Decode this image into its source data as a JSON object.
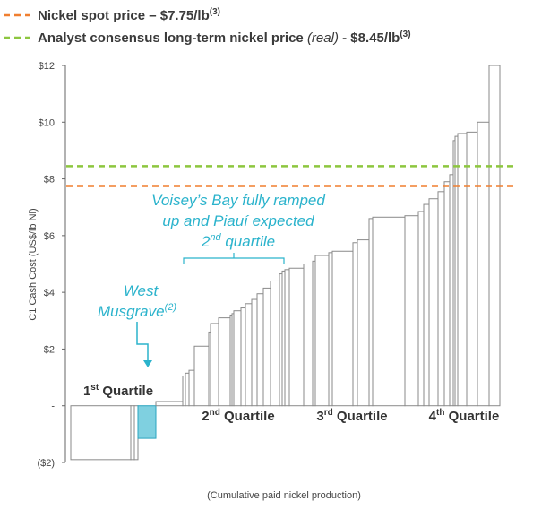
{
  "chart_data": {
    "type": "bar",
    "subtype": "cost-curve",
    "xlabel": "(Cumulative paid nickel production)",
    "ylabel": "C1 Cash Cost (US$/lb Ni)",
    "ylim": [
      -2,
      12
    ],
    "yticks": [
      {
        "value": 12,
        "label": "$12"
      },
      {
        "value": 10,
        "label": "$10"
      },
      {
        "value": 8,
        "label": "$8"
      },
      {
        "value": 6,
        "label": "$6"
      },
      {
        "value": 4,
        "label": "$4"
      },
      {
        "value": 2,
        "label": "$2"
      },
      {
        "value": 0,
        "label": "-"
      },
      {
        "value": -2,
        "label": "($2)"
      }
    ],
    "grid": false,
    "legend_position": "top",
    "legend": [
      {
        "text_main": "Nickel spot price – $7.75/lb",
        "text_italic": "",
        "text_tail": "",
        "sup": "(3)",
        "color": "#f07f2f"
      },
      {
        "text_main": "Analyst consensus long-term nickel price ",
        "text_italic": "(real)",
        "text_tail": " - $8.45/lb",
        "sup": "(3)",
        "color": "#8dc63f"
      }
    ],
    "reference_lines": [
      {
        "value": 7.75,
        "color": "#f07f2f",
        "style": "dashed"
      },
      {
        "value": 8.45,
        "color": "#8dc63f",
        "style": "dashed"
      }
    ],
    "bars": [
      {
        "width": 67,
        "value": -1.9,
        "highlight": false
      },
      {
        "width": 4,
        "value": -1.9,
        "highlight": false
      },
      {
        "width": 4,
        "value": -1.9,
        "highlight": false
      },
      {
        "width": 20,
        "value": -1.15,
        "highlight": true
      },
      {
        "width": 30,
        "value": 0.15,
        "highlight": false
      },
      {
        "width": 3,
        "value": 1.05,
        "highlight": false
      },
      {
        "width": 4,
        "value": 1.15,
        "highlight": false
      },
      {
        "width": 6,
        "value": 1.25,
        "highlight": false
      },
      {
        "width": 16,
        "value": 2.1,
        "highlight": false
      },
      {
        "width": 2,
        "value": 2.6,
        "highlight": false
      },
      {
        "width": 9,
        "value": 2.9,
        "highlight": false
      },
      {
        "width": 13,
        "value": 3.1,
        "highlight": false
      },
      {
        "width": 2,
        "value": 3.2,
        "highlight": false
      },
      {
        "width": 2,
        "value": 3.25,
        "highlight": false
      },
      {
        "width": 8,
        "value": 3.35,
        "highlight": false
      },
      {
        "width": 5,
        "value": 3.45,
        "highlight": false
      },
      {
        "width": 7,
        "value": 3.6,
        "highlight": false
      },
      {
        "width": 6,
        "value": 3.75,
        "highlight": false
      },
      {
        "width": 7,
        "value": 3.95,
        "highlight": false
      },
      {
        "width": 8,
        "value": 4.15,
        "highlight": false
      },
      {
        "width": 10,
        "value": 4.4,
        "highlight": false
      },
      {
        "width": 3,
        "value": 4.65,
        "highlight": false
      },
      {
        "width": 3,
        "value": 4.75,
        "highlight": false
      },
      {
        "width": 5,
        "value": 4.8,
        "highlight": false
      },
      {
        "width": 16,
        "value": 4.85,
        "highlight": false
      },
      {
        "width": 10,
        "value": 5.0,
        "highlight": false
      },
      {
        "width": 3,
        "value": 5.1,
        "highlight": false
      },
      {
        "width": 15,
        "value": 5.3,
        "highlight": false
      },
      {
        "width": 4,
        "value": 5.4,
        "highlight": false
      },
      {
        "width": 23,
        "value": 5.45,
        "highlight": false
      },
      {
        "width": 5,
        "value": 5.75,
        "highlight": false
      },
      {
        "width": 13,
        "value": 5.85,
        "highlight": false
      },
      {
        "width": 4,
        "value": 6.6,
        "highlight": false
      },
      {
        "width": 36,
        "value": 6.65,
        "highlight": false
      },
      {
        "width": 15,
        "value": 6.7,
        "highlight": false
      },
      {
        "width": 6,
        "value": 6.85,
        "highlight": false
      },
      {
        "width": 6,
        "value": 7.1,
        "highlight": false
      },
      {
        "width": 10,
        "value": 7.3,
        "highlight": false
      },
      {
        "width": 7,
        "value": 7.55,
        "highlight": false
      },
      {
        "width": 6,
        "value": 7.9,
        "highlight": false
      },
      {
        "width": 4,
        "value": 8.15,
        "highlight": false
      },
      {
        "width": 2,
        "value": 9.35,
        "highlight": false
      },
      {
        "width": 3,
        "value": 9.5,
        "highlight": false
      },
      {
        "width": 10,
        "value": 9.6,
        "highlight": false
      },
      {
        "width": 12,
        "value": 9.65,
        "highlight": false
      },
      {
        "width": 13,
        "value": 10.0,
        "highlight": false
      },
      {
        "width": 12,
        "value": 12.0,
        "highlight": false
      }
    ],
    "quartile_labels": [
      {
        "base": "1",
        "sup": "st",
        "rest": " Quartile"
      },
      {
        "base": "2",
        "sup": "nd",
        "rest": " Quartile"
      },
      {
        "base": "3",
        "sup": "rd",
        "rest": " Quartile"
      },
      {
        "base": "4",
        "sup": "th",
        "rest": " Quartile"
      }
    ],
    "annotations": {
      "voiseys_line1": "Voisey’s Bay fully ramped",
      "voiseys_line2": "up and Piauí expected",
      "voiseys_line3_base": "2",
      "voiseys_line3_sup": "nd",
      "voiseys_line3_rest": " quartile",
      "west_line1": "West",
      "west_line2": "Musgrave",
      "west_sup": "(2)"
    },
    "colors": {
      "bar_fill": "#ffffff",
      "bar_stroke": "#8a8a8a",
      "highlight_fill": "#7fd0e0",
      "highlight_stroke": "#2aa4bf",
      "axis": "#666666",
      "annotation": "#2bb3cc"
    }
  }
}
